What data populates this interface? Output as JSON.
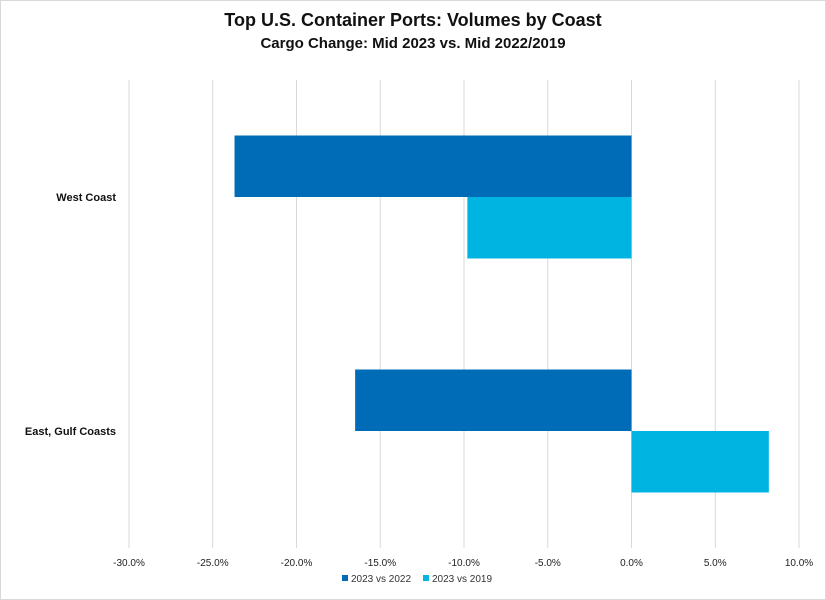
{
  "chart_data": {
    "type": "bar",
    "orientation": "horizontal",
    "title": "Top U.S. Container Ports: Volumes by Coast",
    "subtitle": "Cargo Change: Mid 2023 vs. Mid 2022/2019",
    "categories": [
      "West Coast",
      "East, Gulf Coasts"
    ],
    "series": [
      {
        "name": "2023 vs 2022",
        "color": "#006bb6",
        "values": [
          -23.7,
          -16.5
        ]
      },
      {
        "name": "2023 vs 2019",
        "color": "#00b4e1",
        "values": [
          -9.8,
          8.2
        ]
      }
    ],
    "xlim": [
      -30,
      10
    ],
    "xticks": [
      -30,
      -25,
      -20,
      -15,
      -10,
      -5,
      0,
      5,
      10
    ],
    "xtick_labels": [
      "-30.0%",
      "-25.0%",
      "-20.0%",
      "-15.0%",
      "-10.0%",
      "-5.0%",
      "0.0%",
      "5.0%",
      "10.0%"
    ],
    "grid": true,
    "legend_position": "bottom-center",
    "xlabel": "",
    "ylabel": ""
  }
}
